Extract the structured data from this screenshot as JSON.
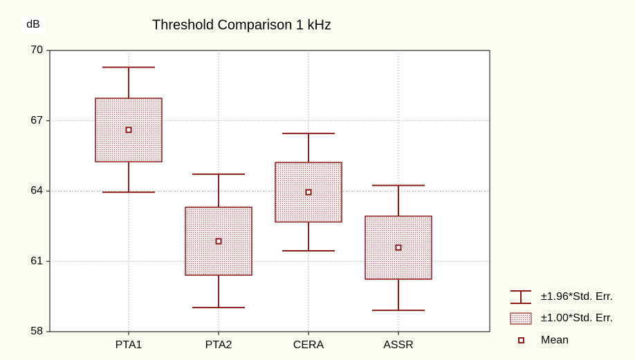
{
  "chart_data": {
    "type": "box",
    "title": "Threshold Comparison 1 kHz",
    "y_label": "dB",
    "categories": [
      "PTA1",
      "PTA2",
      "CERA",
      "ASSR"
    ],
    "series": [
      {
        "name": "±1.96*Std. Err.",
        "color": "#8b1a1a",
        "low": [
          63.95,
          59.03,
          61.45,
          58.91
        ],
        "high": [
          69.28,
          64.72,
          66.46,
          64.24
        ]
      },
      {
        "name": "±1.00*Std. Err.",
        "color": "#8b1a1a",
        "fill": "#ead3d3",
        "low": [
          65.25,
          60.41,
          62.68,
          60.24
        ],
        "high": [
          67.96,
          63.31,
          65.22,
          62.93
        ]
      },
      {
        "name": "Mean",
        "color": "#8b1a1a",
        "values": [
          66.61,
          61.86,
          63.95,
          61.59
        ]
      }
    ],
    "ylim": [
      58,
      70
    ],
    "yticks": [
      58,
      61,
      64,
      67,
      70
    ],
    "grid": true
  }
}
